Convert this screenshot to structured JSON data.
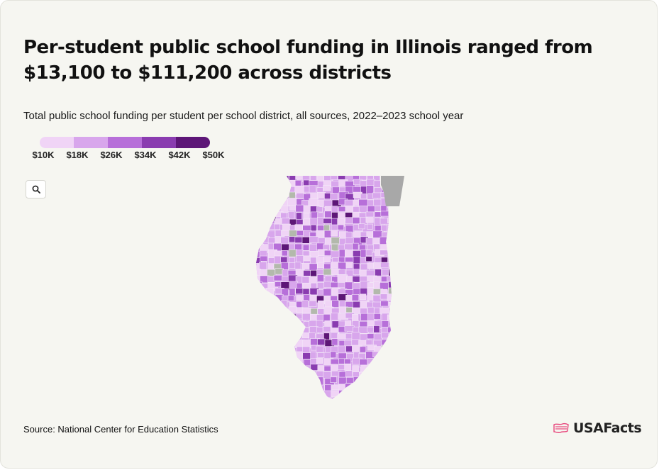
{
  "title": "Per-student public school funding in Illinois ranged from $13,100 to $111,200 across districts",
  "subtitle": "Total public school funding per student per school district, all sources, 2022–2023 school year",
  "legend": {
    "labels": [
      "$10K",
      "$18K",
      "$26K",
      "$34K",
      "$42K",
      "$50K"
    ],
    "colors": [
      "#f0d4f6",
      "#d8a6ec",
      "#b76fd9",
      "#8a3cb0",
      "#5d1677"
    ]
  },
  "colors": {
    "no_data": "#b3b9ac",
    "lake": "#a8a8a8",
    "background": "#f6f6f1"
  },
  "zoom_control": {
    "icon": "search-icon"
  },
  "map": {
    "region": "Illinois",
    "granularity": "school district"
  },
  "source": "Source: National Center for Education Statistics",
  "brand": {
    "name": "USAFacts",
    "icon": "usa-flag-map-icon",
    "accent": "#e8467c"
  }
}
